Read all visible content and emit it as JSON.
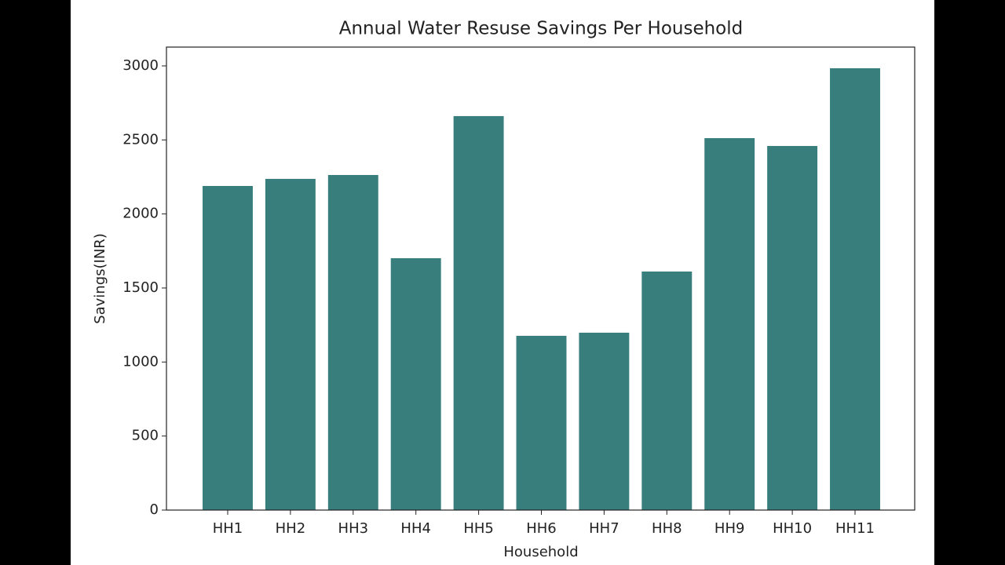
{
  "chart_data": {
    "type": "bar",
    "title": "Annual Water Resuse Savings Per Household",
    "x_label": "Household",
    "y_label": "Savings(INR)",
    "categories": [
      "HH1",
      "HH2",
      "HH3",
      "HH4",
      "HH5",
      "HH6",
      "HH7",
      "HH8",
      "HH9",
      "HH10",
      "HH11"
    ],
    "values": [
      2189,
      2237,
      2263,
      1701,
      2661,
      1177,
      1198,
      1611,
      2512,
      2459,
      2984
    ],
    "color": "#377e7c",
    "ylim": [
      0,
      3127
    ],
    "yticks": [
      0,
      500,
      1000,
      1500,
      2000,
      2500,
      3000
    ]
  }
}
